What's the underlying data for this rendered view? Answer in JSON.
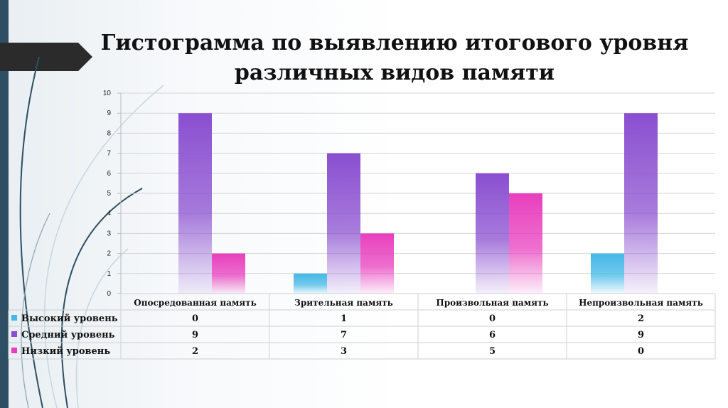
{
  "title": "Гистограмма по выявлению итогового уровня различных видов памяти",
  "colors": {
    "high": "#44b8e6",
    "medium": "#8a4fd0",
    "low": "#e83fbe",
    "accent": "#2e4f63"
  },
  "chart_data": {
    "type": "bar",
    "title": "Гистограмма по выявлению итогового уровня различных видов памяти",
    "categories": [
      "Опосредованная память",
      "Зрительная память",
      "Произвольная память",
      "Непроизвольная память"
    ],
    "series": [
      {
        "name": "Высокий уровень",
        "values": [
          0,
          1,
          0,
          2
        ]
      },
      {
        "name": "Средний уровень",
        "values": [
          9,
          7,
          6,
          9
        ]
      },
      {
        "name": "Низкий уровень",
        "values": [
          2,
          3,
          5,
          0
        ]
      }
    ],
    "ylim": [
      0,
      10
    ],
    "yticks": [
      0,
      1,
      2,
      3,
      4,
      5,
      6,
      7,
      8,
      9,
      10
    ],
    "xlabel": "",
    "ylabel": "",
    "grid": true,
    "legend": "data-table-below"
  }
}
